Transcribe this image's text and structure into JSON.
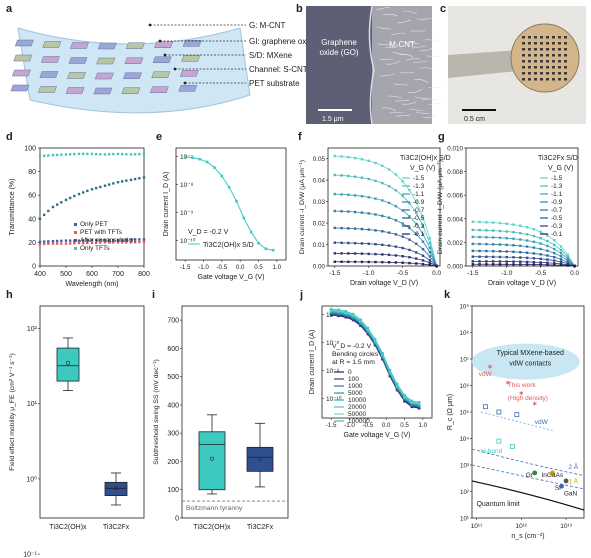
{
  "panel_labels": [
    "a",
    "b",
    "c",
    "d",
    "e",
    "f",
    "g",
    "h",
    "i",
    "j",
    "k"
  ],
  "panel_a": {
    "layers": [
      "G: M-CNT",
      "GI: graphene oxide",
      "S/D: MXene",
      "Channel: S-CNT",
      "PET substrate"
    ]
  },
  "panel_b": {
    "left_label": [
      "Graphene",
      "oxide (GO)"
    ],
    "right_label": "M-CNT",
    "scale_bar": "1.5 μm"
  },
  "panel_c": {
    "scale_bar": "0.5 cm"
  },
  "chart_data": [
    {
      "panel": "d",
      "type": "scatter",
      "xlabel": "Wavelength (nm)",
      "ylabel": "Transmittance (%)",
      "xlim": [
        400,
        800
      ],
      "ylim": [
        0,
        100
      ],
      "xticks": [
        400,
        500,
        600,
        700,
        800
      ],
      "yticks": [
        0,
        20,
        40,
        60,
        80,
        100
      ],
      "legend": "bottom-right",
      "series": [
        {
          "name": "Only PET",
          "color": "#3a5fa8",
          "x": [
            400,
            450,
            500,
            550,
            600,
            650,
            700,
            750,
            800
          ],
          "y": [
            20.5,
            21,
            21.5,
            21.5,
            22,
            22,
            22,
            22.5,
            22.5
          ]
        },
        {
          "name": "PET with TFTs",
          "color": "#e05a5a",
          "x": [
            400,
            450,
            500,
            550,
            600,
            650,
            700,
            750,
            800
          ],
          "y": [
            18.5,
            19,
            19,
            19.5,
            19.5,
            20,
            20,
            20,
            20.5
          ]
        },
        {
          "name": "After encapsulation",
          "color": "#2a6f8f",
          "x": [
            400,
            450,
            500,
            550,
            600,
            650,
            700,
            750,
            800
          ],
          "y": [
            40,
            50,
            56,
            61,
            65,
            68,
            71,
            73,
            75
          ]
        },
        {
          "name": "Only TFTs",
          "color": "#3cc9c0",
          "x": [
            400,
            450,
            500,
            550,
            600,
            650,
            700,
            750,
            800
          ],
          "y": [
            93,
            94,
            94.5,
            95,
            95,
            94.5,
            95,
            94.5,
            95
          ]
        }
      ]
    },
    {
      "panel": "e",
      "type": "line",
      "xlabel": "Gate voltage V_G (V)",
      "ylabel": "Drain current I_D (A)",
      "xlim": [
        -1.75,
        1.25
      ],
      "ylim_log10": [
        -10.7,
        -6.7
      ],
      "xticks": [
        -1.5,
        -1.0,
        -0.5,
        0.0,
        0.5,
        1.0
      ],
      "ytick_exponents": [
        -7,
        -8,
        -9,
        -10
      ],
      "annotation": "V_D = -0.2 V",
      "series": [
        {
          "name": "Ti3C2(OH)x S/D",
          "color": "#3cc9c0",
          "x": [
            -1.5,
            -1.3,
            -1.1,
            -0.9,
            -0.7,
            -0.5,
            -0.3,
            -0.1,
            0.1,
            0.3,
            0.5,
            0.7,
            0.9
          ],
          "log10y": [
            -7.02,
            -7.05,
            -7.1,
            -7.2,
            -7.4,
            -7.7,
            -8.1,
            -8.6,
            -9.2,
            -9.7,
            -10.1,
            -10.3,
            -10.35
          ]
        }
      ]
    },
    {
      "panel": "f",
      "type": "line",
      "title": "Ti3C2(OH)x S/D",
      "xlabel": "Drain voltage V_D (V)",
      "ylabel": "Drain current -I_D/W (μA μm⁻¹)",
      "xlim": [
        -1.6,
        0.05
      ],
      "ylim": [
        0,
        0.055
      ],
      "xticks": [
        -1.5,
        -1.0,
        -0.5,
        0.0
      ],
      "yticks": [
        0.0,
        0.01,
        0.02,
        0.03,
        0.04,
        0.05
      ],
      "legend_header": "V_G (V)",
      "series": [
        {
          "name": "-1.5",
          "saturation": 0.052
        },
        {
          "name": "-1.3",
          "saturation": 0.043
        },
        {
          "name": "-1.1",
          "saturation": 0.034
        },
        {
          "name": "-0.9",
          "saturation": 0.026
        },
        {
          "name": "-0.7",
          "saturation": 0.018
        },
        {
          "name": "-0.5",
          "saturation": 0.011
        },
        {
          "name": "-0.3",
          "saturation": 0.006
        },
        {
          "name": "-0.1",
          "saturation": 0.002
        }
      ]
    },
    {
      "panel": "g",
      "type": "line",
      "title": "Ti3C2Fx S/D",
      "xlabel": "Drain voltage V_D (V)",
      "ylabel": "Drain current -I_D/W (μA μm⁻¹)",
      "xlim": [
        -1.6,
        0.05
      ],
      "ylim": [
        0,
        0.01
      ],
      "xticks": [
        -1.5,
        -1.0,
        -0.5,
        0.0
      ],
      "yticks": [
        0.0,
        0.002,
        0.004,
        0.006,
        0.008,
        0.01
      ],
      "legend_header": "V_G (V)",
      "series": [
        {
          "name": "-1.5",
          "saturation": 0.0038
        },
        {
          "name": "-1.3",
          "saturation": 0.0031
        },
        {
          "name": "-1.1",
          "saturation": 0.0025
        },
        {
          "name": "-0.9",
          "saturation": 0.0019
        },
        {
          "name": "-0.7",
          "saturation": 0.0013
        },
        {
          "name": "-0.5",
          "saturation": 0.0008
        },
        {
          "name": "-0.3",
          "saturation": 0.0004
        },
        {
          "name": "-0.1",
          "saturation": 0.00015
        }
      ]
    },
    {
      "panel": "h",
      "type": "box",
      "ylabel": "Field effect mobility μ_FE (cm² V⁻¹ s⁻¹)",
      "ylim_log10": [
        -0.52,
        2.3
      ],
      "ytick_exponents": [
        -1,
        0,
        1,
        2
      ],
      "categories": [
        "Ti3C2(OH)x",
        "Ti3C2Fx"
      ],
      "boxes": [
        {
          "color": "#3cc9c0",
          "min": 15,
          "q1": 20,
          "median": 32,
          "q3": 55,
          "max": 75,
          "mean": 35
        },
        {
          "color": "#2f4f8f",
          "min": 0.45,
          "q1": 0.6,
          "median": 0.75,
          "q3": 0.9,
          "max": 1.2,
          "mean": 0.76
        }
      ]
    },
    {
      "panel": "i",
      "type": "box",
      "ylabel": "Subthreshold swing SS (mV dec⁻¹)",
      "ylim": [
        0,
        750
      ],
      "yticks": [
        0,
        100,
        200,
        300,
        400,
        500,
        600,
        700
      ],
      "categories": [
        "Ti3C2(OH)x",
        "Ti3C2Fx"
      ],
      "reference_line": {
        "value": 60,
        "label": "Boltzmann tyranny"
      },
      "boxes": [
        {
          "color": "#3cc9c0",
          "min": 85,
          "q1": 100,
          "median": 260,
          "q3": 305,
          "max": 365,
          "mean": 210
        },
        {
          "color": "#2f4f8f",
          "min": 110,
          "q1": 165,
          "median": 215,
          "q3": 250,
          "max": 335,
          "mean": 210
        }
      ]
    },
    {
      "panel": "j",
      "type": "line",
      "xlabel": "Gate voltage V_G (V)",
      "ylabel": "Drain current I_D (A)",
      "xlim": [
        -1.75,
        1.25
      ],
      "ylim_log10": [
        -10.7,
        -6.7
      ],
      "xticks": [
        -1.5,
        -1.0,
        -0.5,
        0.0,
        0.5,
        1.0
      ],
      "ytick_exponents": [
        -7,
        -8,
        -9,
        -10
      ],
      "annotation": [
        "V_D = -0.2 V",
        "Bending circles",
        "at R = 1.5 mm"
      ],
      "legend": "bottom-left",
      "series": [
        {
          "name": "0"
        },
        {
          "name": "100"
        },
        {
          "name": "1000"
        },
        {
          "name": "5000"
        },
        {
          "name": "10000"
        },
        {
          "name": "20000"
        },
        {
          "name": "50000"
        },
        {
          "name": "100000"
        }
      ]
    },
    {
      "panel": "k",
      "type": "scatter",
      "xlabel": "n_s (cm⁻²)",
      "ylabel": "R_c (Ω μm)",
      "xlim_log10": [
        10.9,
        13.4
      ],
      "ylim_log10": [
        1,
        9
      ],
      "xtick_exponents": [
        11,
        12,
        13
      ],
      "ytick_exponents": [
        1,
        2,
        3,
        4,
        5,
        6,
        7,
        8,
        9
      ],
      "annotations": [
        "Typical MXene-based",
        "vdW contacts",
        "vdW",
        "This work",
        "(High density)",
        "vdW",
        "H-bond",
        "2 Å",
        "1 Å",
        "Gr",
        "InGaAs",
        "Si",
        "GaN",
        "Quantum limit"
      ]
    }
  ]
}
